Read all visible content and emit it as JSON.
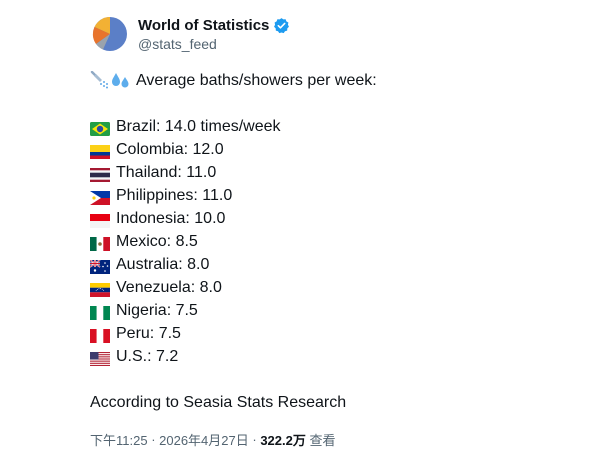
{
  "account": {
    "name": "World of Statistics",
    "handle": "@stats_feed",
    "avatar_icon": "pie-chart-avatar",
    "verified_icon": "verified-badge-icon"
  },
  "tweet": {
    "intro_text": "Average baths/showers per week:",
    "intro_icons": [
      "shower-icon",
      "sweat-droplets-icon"
    ],
    "countries": [
      {
        "flag_icon": "flag-brazil",
        "text": "Brazil: 14.0 times/week"
      },
      {
        "flag_icon": "flag-colombia",
        "text": "Colombia: 12.0"
      },
      {
        "flag_icon": "flag-thailand",
        "text": "Thailand: 11.0"
      },
      {
        "flag_icon": "flag-philippines",
        "text": "Philippines: 11.0"
      },
      {
        "flag_icon": "flag-indonesia",
        "text": "Indonesia: 10.0"
      },
      {
        "flag_icon": "flag-mexico",
        "text": "Mexico: 8.5"
      },
      {
        "flag_icon": "flag-australia",
        "text": "Australia: 8.0"
      },
      {
        "flag_icon": "flag-venezuela",
        "text": "Venezuela: 8.0"
      },
      {
        "flag_icon": "flag-nigeria",
        "text": "Nigeria: 7.5"
      },
      {
        "flag_icon": "flag-peru",
        "text": "Peru: 7.5"
      },
      {
        "flag_icon": "flag-usa",
        "text": "U.S.: 7.2"
      }
    ],
    "source": "According to Seasia Stats Research"
  },
  "meta": {
    "time": "下午11:25",
    "separator": " · ",
    "date": "2026年4月27日",
    "views_count": "322.2万",
    "views_label": " 查看"
  },
  "colors": {
    "text": "#0f1419",
    "secondary": "#536471",
    "verified": "#1d9bf0"
  }
}
